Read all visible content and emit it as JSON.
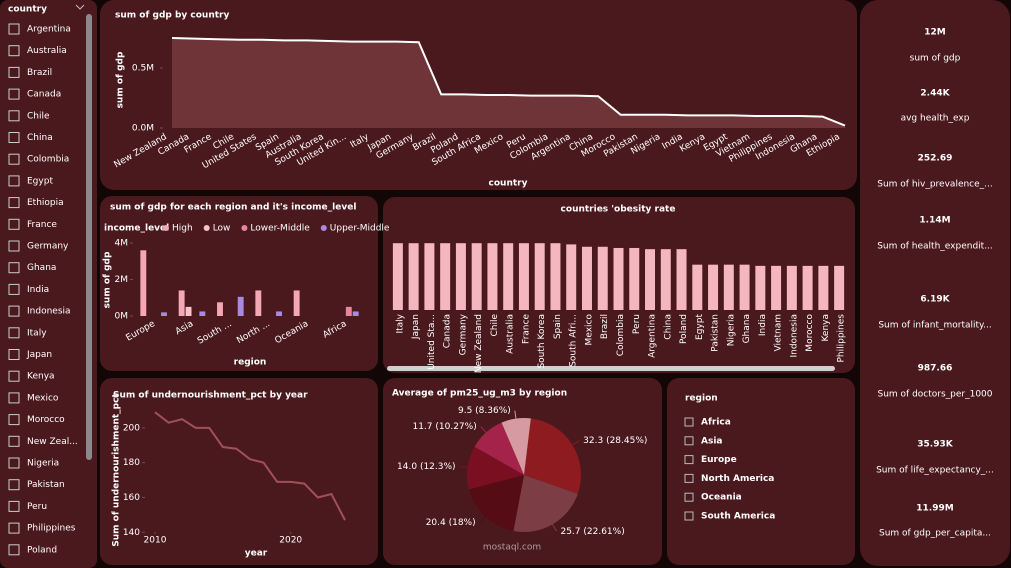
{
  "country_slicer": {
    "title": "country",
    "items": [
      "Argentina",
      "Australia",
      "Brazil",
      "Canada",
      "Chile",
      "China",
      "Colombia",
      "Egypt",
      "Ethiopia",
      "France",
      "Germany",
      "Ghana",
      "India",
      "Indonesia",
      "Italy",
      "Japan",
      "Kenya",
      "Mexico",
      "Morocco",
      "New Zeal...",
      "Nigeria",
      "Pakistan",
      "Peru",
      "Philippines",
      "Poland"
    ]
  },
  "chart_data": [
    {
      "type": "area",
      "title": "sum of gdp by country",
      "x_label": "country",
      "y_label": "sum of gdp",
      "categories": [
        "New Zealand",
        "Canada",
        "France",
        "Chile",
        "United States",
        "Spain",
        "Australia",
        "South Korea",
        "United Kin...",
        "Italy",
        "Japan",
        "Germany",
        "Brazil",
        "Poland",
        "South Africa",
        "Mexico",
        "Peru",
        "Colombia",
        "Argentina",
        "China",
        "Morocco",
        "Pakistan",
        "Nigeria",
        "India",
        "Kenya",
        "Egypt",
        "Vietnam",
        "Philippines",
        "Indonesia",
        "Ghana",
        "Ethiopia"
      ],
      "values": [
        750000,
        745000,
        740000,
        735000,
        735000,
        730000,
        730000,
        725000,
        720000,
        720000,
        720000,
        715000,
        280000,
        280000,
        275000,
        275000,
        270000,
        270000,
        270000,
        265000,
        110000,
        110000,
        110000,
        105000,
        105000,
        105000,
        100000,
        100000,
        100000,
        95000,
        20000
      ],
      "color": "#ffffff",
      "fill": "#6e3438",
      "ylim": [
        0,
        800000
      ],
      "yticks": [
        {
          "value": 0,
          "label": "0.0M"
        },
        {
          "value": 500000,
          "label": "0.5M"
        }
      ]
    },
    {
      "type": "grouped_bar",
      "title": "sum of gdp for each region and it's income_level",
      "legend_title": "income_level",
      "x_label": "region",
      "y_label": "sum of gdp",
      "categories": [
        "Europe",
        "Asia",
        "South ...",
        "North ...",
        "Oceania",
        "Africa"
      ],
      "series": [
        {
          "name": "High",
          "color": "#f4a7b4",
          "values": [
            3600000,
            1400000,
            750000,
            1400000,
            1400000,
            null
          ]
        },
        {
          "name": "Low",
          "color": "#f7c2cb",
          "values": [
            null,
            500000,
            null,
            null,
            null,
            null
          ]
        },
        {
          "name": "Lower-Middle",
          "color": "#e8859f",
          "values": [
            null,
            null,
            null,
            null,
            null,
            500000
          ]
        },
        {
          "name": "Upper-Middle",
          "color": "#a98ae0",
          "values": [
            200000,
            250000,
            1050000,
            250000,
            null,
            250000
          ]
        }
      ],
      "ylim": [
        0,
        4000000
      ],
      "yticks": [
        {
          "value": 0,
          "label": "0M"
        },
        {
          "value": 2000000,
          "label": "2M"
        },
        {
          "value": 4000000,
          "label": "4M"
        }
      ]
    },
    {
      "type": "bar",
      "title": "countries 'obesity rate",
      "categories": [
        "Italy",
        "Japan",
        "United Sta...",
        "Canada",
        "Germany",
        "New Zealand",
        "Chile",
        "Australia",
        "France",
        "South Korea",
        "Spain",
        "South Afri...",
        "Mexico",
        "Brazil",
        "Colombia",
        "Peru",
        "Argentina",
        "China",
        "Poland",
        "Egypt",
        "Pakistan",
        "Nigeria",
        "Ghana",
        "India",
        "Vietnam",
        "Indonesia",
        "Morocco",
        "Kenya",
        "Philippines"
      ],
      "values": [
        28,
        28,
        28,
        28,
        28,
        28,
        28,
        28,
        28,
        28,
        28,
        27.5,
        26.5,
        26.5,
        26,
        26,
        25.5,
        25.5,
        25.5,
        19,
        19,
        19,
        19,
        18.5,
        18.5,
        18.5,
        18.5,
        18.5,
        18.5
      ],
      "color": "#f4b6bf",
      "ylim": [
        0,
        28.5
      ]
    },
    {
      "type": "line",
      "title": "Sum of undernourishment_pct by year",
      "x_label": "year",
      "y_label": "Sum of undernourishment_pct",
      "x": [
        2010,
        2011,
        2012,
        2013,
        2014,
        2015,
        2016,
        2017,
        2018,
        2019,
        2020,
        2021,
        2022,
        2023,
        2024
      ],
      "values": [
        209,
        203,
        205,
        200,
        200,
        189,
        188,
        182,
        180,
        169,
        169,
        168,
        160,
        162,
        147
      ],
      "color": "#a0505a",
      "xlim": [
        2010,
        2024
      ],
      "xticks": [
        2010,
        2020
      ],
      "ylim": [
        135,
        212
      ],
      "yticks": [
        140,
        160,
        180,
        200
      ]
    },
    {
      "type": "pie",
      "title": "Average of pm25_ug_m3 by region",
      "values": [
        32.3,
        25.7,
        20.4,
        14,
        11.7,
        9.5
      ],
      "value_labels": [
        "32.3 (28.45%)",
        "25.7 (22.61%)",
        "20.4 (18%)",
        "14.0 (12.3%)",
        "11.7 (10.27%)",
        "9.5 (8.36%)"
      ],
      "colors": [
        "#8e1b1f",
        "#7d3d45",
        "#560c14",
        "#7a0f22",
        "#a3234a",
        "#d69aa2"
      ]
    }
  ],
  "region_slicer": {
    "title": "region",
    "items": [
      "Africa",
      "Asia",
      "Europe",
      "North America",
      "Oceania",
      "South America"
    ]
  },
  "kpis": [
    {
      "value": "12M",
      "label": "sum of gdp"
    },
    {
      "value": "2.44K",
      "label": "avg health_exp"
    },
    {
      "value": "252.69",
      "label": "Sum of hiv_prevalence_..."
    },
    {
      "value": "1.14M",
      "label": "Sum of health_expendit..."
    },
    {
      "value": "6.19K",
      "label": "Sum of infant_mortality..."
    },
    {
      "value": "987.66",
      "label": "Sum of doctors_per_1000"
    },
    {
      "value": "35.93K",
      "label": "Sum of life_expectancy_..."
    },
    {
      "value": "11.99M",
      "label": "Sum of gdp_per_capita..."
    }
  ],
  "watermark": "mostaql.com"
}
